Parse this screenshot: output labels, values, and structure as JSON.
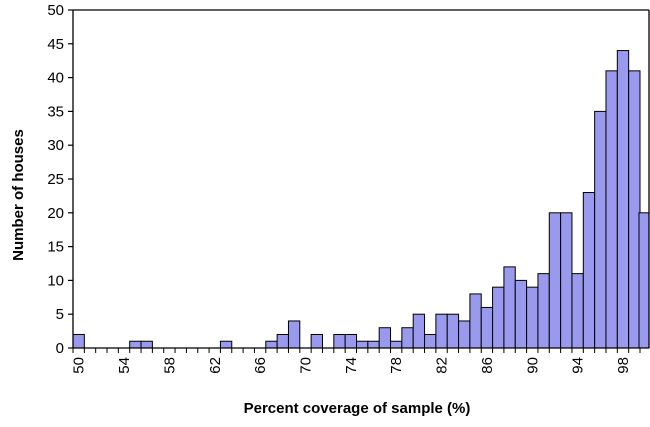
{
  "chart_data": {
    "type": "bar",
    "title": "",
    "xlabel": "Percent coverage of sample  (%)",
    "ylabel": "Number of houses",
    "ylim": [
      0,
      50
    ],
    "yticks": [
      0,
      5,
      10,
      15,
      20,
      25,
      30,
      35,
      40,
      45,
      50
    ],
    "xlim": [
      50,
      100
    ],
    "xticks": [
      50,
      54,
      58,
      62,
      66,
      70,
      74,
      78,
      82,
      86,
      90,
      94,
      98
    ],
    "bin_width": 1,
    "grid": false,
    "legend": "none",
    "bar_color": "#9999ee",
    "bar_edge_color": "#000000",
    "x": [
      50,
      51,
      52,
      53,
      54,
      55,
      56,
      57,
      58,
      59,
      60,
      61,
      62,
      63,
      64,
      65,
      66,
      67,
      68,
      69,
      70,
      71,
      72,
      73,
      74,
      75,
      76,
      77,
      78,
      79,
      80,
      81,
      82,
      83,
      84,
      85,
      86,
      87,
      88,
      89,
      90,
      91,
      92,
      93,
      94,
      95,
      96,
      97,
      98,
      99
    ],
    "values": [
      2,
      0,
      0,
      0,
      0,
      1,
      1,
      0,
      0,
      0,
      0,
      0,
      0,
      1,
      0,
      0,
      0,
      1,
      2,
      4,
      0,
      2,
      0,
      2,
      2,
      1,
      1,
      3,
      1,
      3,
      5,
      2,
      5,
      5,
      4,
      8,
      6,
      9,
      12,
      10,
      9,
      11,
      20,
      20,
      11,
      23,
      35,
      41,
      44,
      41
    ],
    "last_bar_value": 20
  }
}
